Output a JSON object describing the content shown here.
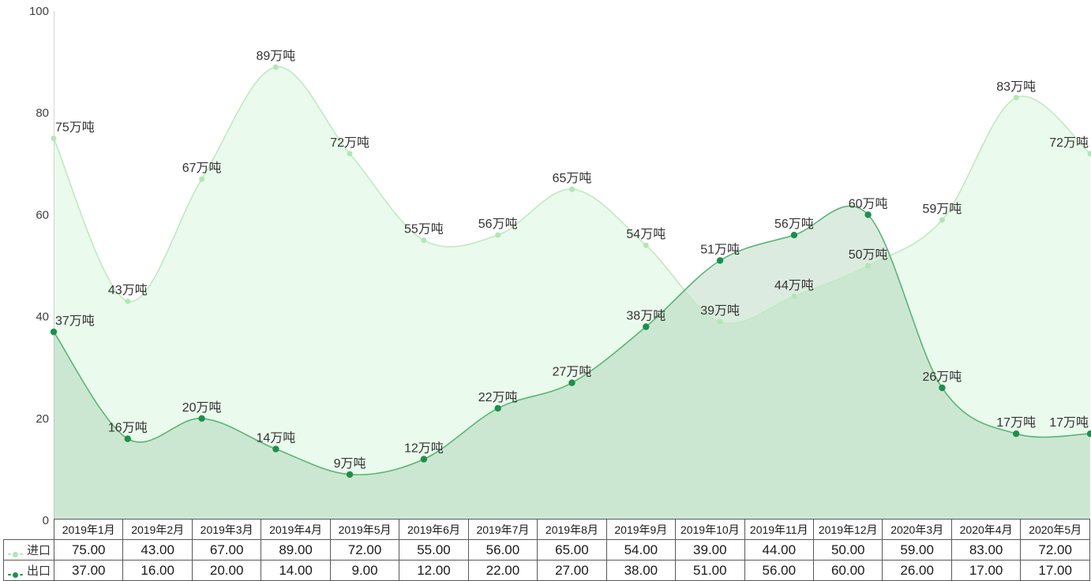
{
  "chart_data": {
    "type": "area",
    "title": "",
    "xlabel": "",
    "ylabel": "",
    "categories": [
      "2019年1月",
      "2019年2月",
      "2019年3月",
      "2019年4月",
      "2019年5月",
      "2019年6月",
      "2019年7月",
      "2019年8月",
      "2019年9月",
      "2019年10月",
      "2019年11月",
      "2019年12月",
      "2020年3月",
      "2020年4月",
      "2020年5月"
    ],
    "series": [
      {
        "id": "import",
        "name": "进口",
        "values": [
          75,
          43,
          67,
          89,
          72,
          55,
          56,
          65,
          54,
          39,
          44,
          50,
          59,
          83,
          72
        ],
        "line_color": "#bfe9c2",
        "dot_color": "#b2e6b6",
        "dot_radius": 3.5,
        "fill_color": "rgba(150,230,160,0.20)"
      },
      {
        "id": "export",
        "name": "出口",
        "values": [
          37,
          16,
          20,
          14,
          9,
          12,
          22,
          27,
          38,
          51,
          56,
          60,
          26,
          17,
          17
        ],
        "line_color": "#5ab478",
        "dot_color": "#1f8e4d",
        "dot_radius": 4.2,
        "fill_color": "rgba(115,175,127,0.25)"
      }
    ],
    "label_suffix": "万吨",
    "ylim": [
      0,
      100
    ],
    "yticks": [
      0,
      20,
      40,
      60,
      80,
      100
    ],
    "grid": false,
    "smooth": true,
    "legend_position": "table-left"
  },
  "table": {
    "value_decimals": 2
  },
  "colors": {
    "axis_line": "#d4d4d4",
    "tick_text": "#404040",
    "data_label_text": "#333333",
    "table_border": "#595959",
    "table_text": "#1a1a1a"
  }
}
